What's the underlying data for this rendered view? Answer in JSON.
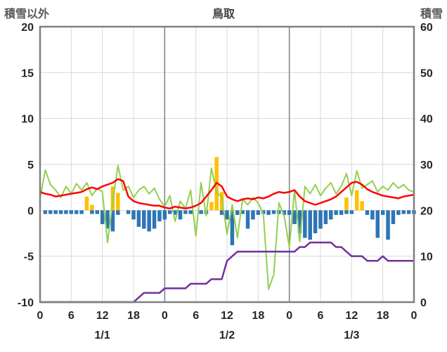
{
  "header": {
    "left_axis_title": "積雪以外",
    "chart_title": "鳥取",
    "right_axis_title": "積雪"
  },
  "chart_data": {
    "type": "combo",
    "title": "鳥取",
    "left_axis": {
      "label": "積雪以外",
      "min": -10,
      "max": 20,
      "ticks": [
        20,
        15,
        10,
        5,
        0,
        -5,
        -10
      ]
    },
    "right_axis": {
      "label": "積雪",
      "min": 0,
      "max": 60,
      "ticks": [
        60,
        50,
        40,
        30,
        20,
        10,
        0
      ]
    },
    "x_axis": {
      "hours_total": 72,
      "tick_interval": 6,
      "hour_tick_labels": [
        "0",
        "6",
        "12",
        "18",
        "0",
        "6",
        "12",
        "18",
        "0",
        "6",
        "12",
        "18",
        "0"
      ],
      "day_labels": [
        "1/1",
        "1/2",
        "1/3"
      ],
      "day_boundaries": [
        24,
        48
      ],
      "grid": true
    },
    "colors": {
      "axis": "#808080",
      "grid": "#d9d9d9",
      "day_grid": "#808080",
      "background": "#ffffff",
      "tick_text": "#262626",
      "label_text": "#595959"
    },
    "series": [
      {
        "name": "gold-bar-series",
        "type": "bar",
        "axis": "left",
        "color": "#FFC000",
        "values": [
          null,
          null,
          null,
          null,
          null,
          null,
          null,
          null,
          null,
          1.5,
          0.6,
          null,
          null,
          null,
          2.6,
          1.9,
          null,
          null,
          null,
          null,
          null,
          null,
          null,
          null,
          null,
          null,
          null,
          null,
          null,
          null,
          null,
          null,
          null,
          0.9,
          5.8,
          2.0,
          null,
          null,
          null,
          null,
          null,
          null,
          null,
          null,
          null,
          null,
          null,
          null,
          null,
          null,
          null,
          null,
          null,
          null,
          null,
          null,
          null,
          null,
          null,
          1.4,
          null,
          2.2,
          1.0,
          null,
          null,
          null,
          null,
          null,
          null,
          null,
          null,
          null,
          null
        ]
      },
      {
        "name": "blue-bar-series",
        "type": "bar",
        "axis": "left",
        "color": "#2E75B6",
        "values": [
          null,
          -0.4,
          -0.4,
          -0.4,
          -0.4,
          -0.4,
          -0.4,
          -0.4,
          -0.4,
          null,
          -0.4,
          -0.4,
          -1.5,
          -2.0,
          -2.3,
          -0.5,
          null,
          -0.4,
          -1.0,
          -1.8,
          -2.0,
          -2.3,
          -2.0,
          -1.2,
          -1.0,
          -0.4,
          -0.5,
          -1.0,
          -0.4,
          -0.4,
          null,
          -0.4,
          -0.4,
          null,
          null,
          -0.5,
          -1.0,
          -3.8,
          -0.5,
          -0.4,
          -2.0,
          -1.0,
          -0.5,
          -0.4,
          -0.5,
          -0.4,
          -0.4,
          -0.5,
          -0.5,
          -1.5,
          -2.5,
          -3.0,
          -3.2,
          -2.5,
          -2.0,
          -1.5,
          -1.0,
          -0.5,
          -0.5,
          -0.4,
          -0.4,
          null,
          null,
          -0.5,
          -1.0,
          -3.0,
          -0.5,
          -3.2,
          -1.5,
          -0.5,
          -0.4,
          -0.4,
          -0.4
        ]
      },
      {
        "name": "green-line-series",
        "type": "line",
        "axis": "left",
        "color": "#92D050",
        "width": 2,
        "values": [
          1.3,
          4.4,
          2.8,
          2.2,
          1.4,
          2.6,
          1.8,
          2.9,
          2.2,
          3.0,
          1.6,
          2.4,
          2.0,
          -3.5,
          1.0,
          4.9,
          2.2,
          2.6,
          1.4,
          2.2,
          2.6,
          1.8,
          2.4,
          1.2,
          0.4,
          1.6,
          -1.2,
          1.0,
          0.2,
          2.2,
          -2.8,
          3.0,
          -0.6,
          4.6,
          2.0,
          1.4,
          -2.6,
          0.6,
          -3.0,
          1.2,
          0.6,
          1.4,
          0.8,
          -0.4,
          -8.6,
          -7.0,
          0.8,
          -0.6,
          -4.0,
          2.2,
          -3.4,
          2.6,
          1.8,
          2.8,
          1.6,
          2.4,
          3.0,
          1.8,
          2.6,
          4.0,
          1.6,
          4.3,
          2.4,
          2.8,
          3.2,
          2.0,
          2.6,
          2.2,
          3.0,
          2.4,
          2.8,
          2.2,
          2.0
        ]
      },
      {
        "name": "red-line-series",
        "type": "line",
        "axis": "left",
        "color": "#FF0000",
        "width": 2.5,
        "values": [
          2.0,
          1.8,
          1.7,
          1.5,
          1.6,
          1.7,
          1.8,
          1.9,
          2.0,
          2.3,
          2.5,
          2.3,
          2.6,
          2.8,
          3.0,
          3.4,
          3.2,
          1.5,
          1.0,
          0.8,
          0.7,
          0.6,
          0.5,
          0.5,
          0.3,
          0.2,
          0.4,
          0.3,
          0.2,
          0.3,
          0.5,
          0.8,
          1.5,
          2.2,
          3.0,
          2.6,
          1.5,
          1.2,
          1.0,
          1.2,
          1.3,
          1.2,
          1.4,
          1.3,
          1.5,
          1.8,
          2.0,
          1.9,
          2.0,
          2.2,
          1.5,
          1.0,
          0.8,
          0.6,
          0.8,
          1.0,
          1.2,
          1.5,
          2.0,
          2.5,
          3.0,
          3.1,
          2.8,
          2.3,
          2.0,
          1.8,
          1.6,
          1.5,
          1.4,
          1.3,
          1.5,
          1.6,
          1.7
        ]
      },
      {
        "name": "purple-line-series",
        "type": "line",
        "axis": "right",
        "color": "#7030A0",
        "width": 2.5,
        "values": [
          0,
          0,
          0,
          0,
          0,
          0,
          0,
          0,
          0,
          0,
          0,
          0,
          0,
          0,
          0,
          0,
          0,
          0,
          0,
          1,
          2,
          2,
          2,
          2,
          3,
          3,
          3,
          3,
          3,
          4,
          4,
          4,
          4,
          5,
          5,
          5,
          9,
          10,
          11,
          11,
          11,
          11,
          11,
          11,
          11,
          11,
          11,
          11,
          11,
          11,
          12,
          12,
          13,
          13,
          13,
          13,
          13,
          12,
          12,
          11,
          10,
          10,
          10,
          9,
          9,
          9,
          10,
          9,
          9,
          9,
          9,
          9,
          9
        ]
      }
    ]
  }
}
